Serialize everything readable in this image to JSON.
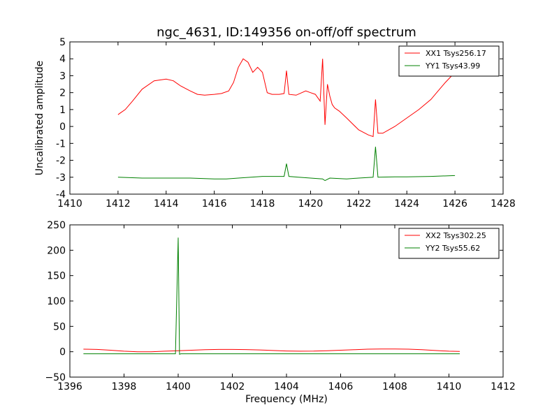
{
  "chart_data": [
    {
      "type": "line",
      "title": "ngc_4631, ID:149356 on-off/off spectrum",
      "xlabel": "",
      "ylabel": "Uncalibrated amplitude",
      "xlim": [
        1410,
        1428
      ],
      "ylim": [
        -4,
        5
      ],
      "xticks": [
        1410,
        1412,
        1414,
        1416,
        1418,
        1420,
        1422,
        1424,
        1426,
        1428
      ],
      "yticks": [
        -4,
        -3,
        -2,
        -1,
        0,
        1,
        2,
        3,
        4,
        5
      ],
      "grid": false,
      "legend_position": "top-right",
      "series": [
        {
          "name": "XX1 Tsys256.17",
          "color": "#ff0000",
          "x": [
            1412.0,
            1412.1,
            1412.3,
            1412.6,
            1413.0,
            1413.5,
            1414.0,
            1414.3,
            1414.6,
            1415.0,
            1415.3,
            1415.6,
            1416.0,
            1416.3,
            1416.6,
            1416.8,
            1417.0,
            1417.2,
            1417.4,
            1417.6,
            1417.8,
            1418.0,
            1418.2,
            1418.4,
            1418.7,
            1418.9,
            1419.0,
            1419.1,
            1419.4,
            1419.8,
            1420.0,
            1420.2,
            1420.4,
            1420.5,
            1420.6,
            1420.7,
            1420.8,
            1420.9,
            1421.0,
            1421.2,
            1421.5,
            1422.0,
            1422.4,
            1422.6,
            1422.7,
            1422.8,
            1423.0,
            1423.5,
            1424.0,
            1424.5,
            1425.0,
            1425.3,
            1425.6,
            1426.0
          ],
          "y": [
            0.7,
            0.8,
            1.0,
            1.5,
            2.2,
            2.7,
            2.8,
            2.7,
            2.4,
            2.1,
            1.9,
            1.85,
            1.9,
            1.95,
            2.1,
            2.6,
            3.5,
            4.0,
            3.8,
            3.2,
            3.5,
            3.2,
            2.0,
            1.9,
            1.9,
            1.95,
            3.3,
            1.9,
            1.85,
            2.1,
            2.0,
            1.9,
            1.5,
            4.0,
            0.1,
            2.5,
            1.8,
            1.3,
            1.1,
            0.9,
            0.5,
            -0.2,
            -0.5,
            -0.6,
            1.6,
            -0.4,
            -0.4,
            0.0,
            0.5,
            1.0,
            1.6,
            2.1,
            2.6,
            3.2
          ]
        },
        {
          "name": "YY1 Tsys43.99",
          "color": "#008000",
          "x": [
            1412.0,
            1413.0,
            1414.0,
            1415.0,
            1416.0,
            1416.5,
            1417.0,
            1418.0,
            1418.9,
            1419.0,
            1419.1,
            1419.5,
            1420.0,
            1420.5,
            1420.6,
            1420.8,
            1421.5,
            1422.0,
            1422.6,
            1422.7,
            1422.8,
            1423.5,
            1424.0,
            1425.0,
            1426.0
          ],
          "y": [
            -3.0,
            -3.05,
            -3.05,
            -3.05,
            -3.1,
            -3.1,
            -3.05,
            -2.95,
            -2.95,
            -2.2,
            -2.95,
            -3.0,
            -3.05,
            -3.1,
            -3.2,
            -3.05,
            -3.1,
            -3.05,
            -3.0,
            -1.2,
            -3.0,
            -2.98,
            -2.98,
            -2.95,
            -2.9
          ]
        }
      ]
    },
    {
      "type": "line",
      "title": "",
      "xlabel": "Frequency (MHz)",
      "ylabel": "",
      "xlim": [
        1396,
        1412
      ],
      "ylim": [
        -50,
        250
      ],
      "xticks": [
        1396,
        1398,
        1400,
        1402,
        1404,
        1406,
        1408,
        1410,
        1412
      ],
      "yticks": [
        -50,
        0,
        50,
        100,
        150,
        200,
        250
      ],
      "yticklabels": [
        "−50",
        "0",
        "50",
        "100",
        "150",
        "200",
        "250"
      ],
      "grid": false,
      "legend_position": "top-right",
      "series": [
        {
          "name": "XX2 Tsys302.25",
          "color": "#ff0000",
          "x": [
            1396.5,
            1397.0,
            1397.5,
            1398.0,
            1398.5,
            1399.0,
            1399.5,
            1400.0,
            1400.5,
            1401.0,
            1401.5,
            1402.0,
            1402.5,
            1403.0,
            1403.5,
            1404.0,
            1404.5,
            1405.0,
            1405.5,
            1406.0,
            1406.5,
            1407.0,
            1407.5,
            1408.0,
            1408.5,
            1409.0,
            1409.5,
            1410.0,
            1410.4
          ],
          "y": [
            5,
            4.5,
            3,
            1,
            0,
            0,
            1,
            2,
            3,
            4,
            4.5,
            4.5,
            4.2,
            3.5,
            2.5,
            1.5,
            1,
            1.2,
            2,
            3,
            4,
            5,
            5.5,
            5.5,
            5,
            4,
            2.5,
            1,
            0.5
          ]
        },
        {
          "name": "YY2 Tsys55.62",
          "color": "#008000",
          "x": [
            1396.5,
            1398.0,
            1399.5,
            1399.9,
            1400.0,
            1400.05,
            1400.1,
            1401.0,
            1403.0,
            1405.0,
            1407.0,
            1409.0,
            1410.4
          ],
          "y": [
            -4,
            -4,
            -4,
            -4,
            225,
            -5,
            -4,
            -4,
            -4,
            -4,
            -4,
            -4,
            -4
          ]
        }
      ]
    }
  ]
}
